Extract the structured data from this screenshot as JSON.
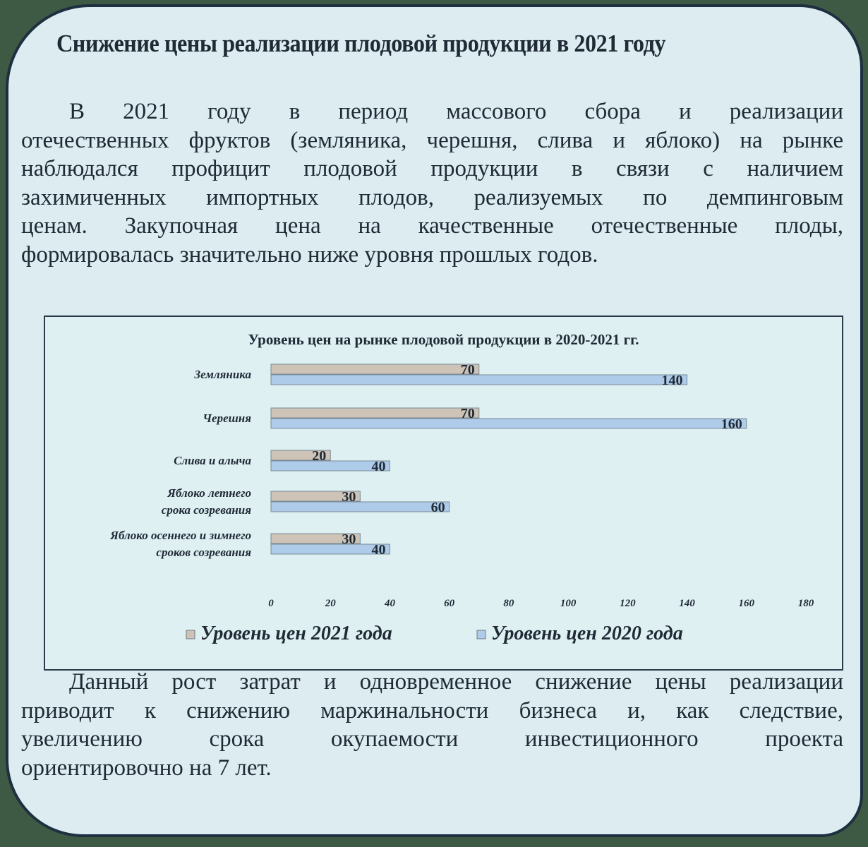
{
  "title": "Снижение цены реализации плодовой продукции в 2021 году",
  "paragraph1_lines": [
    "В 2021 году в период массового сбора и реализации",
    "отечественных фруктов (земляника, черешня, слива и яблоко) на рынке",
    "наблюдался профицит плодовой продукции в связи с наличием",
    "захимиченных импортных плодов, реализуемых по демпинговым",
    "ценам. Закупочная цена на качественные отечественные плоды,",
    "формировалась значительно ниже уровня прошлых годов."
  ],
  "paragraph2_lines": [
    "Данный рост затрат и одновременное снижение цены реализации",
    "приводит к снижению маржинальности бизнеса и, как следствие,",
    "увеличению срока окупаемости инвестиционного проекта",
    "ориентировочно на 7 лет."
  ],
  "chart_data": {
    "type": "bar",
    "orientation": "horizontal",
    "title": "Уровень цен на рынке плодовой продукции в 2020-2021 гг.",
    "categories": [
      "Земляника",
      "Черешня",
      "Слива и алыча",
      "Яблоко летнего срока созревания",
      "Яблоко осеннего и зимнего сроков созревания"
    ],
    "category_lines": [
      [
        "Земляника"
      ],
      [
        "Черешня"
      ],
      [
        "Слива и алыча"
      ],
      [
        "Яблоко летнего",
        "срока созревания"
      ],
      [
        "Яблоко осеннего и зимнего",
        "сроков созревания"
      ]
    ],
    "series": [
      {
        "name": "Уровень цен 2021 года",
        "values": [
          70,
          70,
          20,
          30,
          30
        ],
        "color": "#cdc3b6"
      },
      {
        "name": "Уровень цен 2020 года",
        "values": [
          140,
          160,
          40,
          60,
          40
        ],
        "color": "#aecbe9"
      }
    ],
    "xlim": [
      0,
      180
    ],
    "xticks": [
      "0",
      "20",
      "40",
      "60",
      "80",
      "100",
      "120",
      "140",
      "160",
      "180"
    ],
    "grid": false,
    "data_labels": true,
    "legend_position": "bottom"
  }
}
